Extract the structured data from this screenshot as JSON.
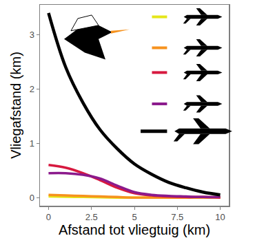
{
  "chart_data": {
    "type": "line",
    "x_label": "Afstand tot vliegtuig (km)",
    "y_label": "Vliegafstand (km)",
    "x": [
      0,
      1,
      2,
      3,
      4,
      5,
      6,
      7,
      8,
      9,
      10
    ],
    "series": [
      {
        "color": "#e5e619",
        "values": [
          0.02,
          0.015,
          0.01,
          0.005,
          0.0,
          0.0,
          0.0,
          0.0,
          0.0,
          0.0,
          0.0
        ]
      },
      {
        "color": "#f6921e",
        "values": [
          0.05,
          0.04,
          0.03,
          0.02,
          0.01,
          0.0,
          0.0,
          0.0,
          0.0,
          0.0,
          0.0
        ]
      },
      {
        "color": "#d7193f",
        "values": [
          0.6,
          0.55,
          0.45,
          0.32,
          0.18,
          0.08,
          0.04,
          0.02,
          0.01,
          0.01,
          0.0
        ]
      },
      {
        "color": "#8b1a8c",
        "values": [
          0.45,
          0.45,
          0.42,
          0.35,
          0.22,
          0.1,
          0.05,
          0.03,
          0.02,
          0.01,
          0.01
        ]
      },
      {
        "color": "#000000",
        "values": [
          3.4,
          2.4,
          1.75,
          1.25,
          0.9,
          0.62,
          0.43,
          0.28,
          0.18,
          0.1,
          0.05
        ]
      }
    ],
    "xlim": [
      -0.5,
      10.5
    ],
    "ylim": [
      -0.15,
      3.55
    ],
    "xticks": [
      0,
      2.5,
      5,
      7.5,
      10
    ],
    "yticks": [
      0,
      1,
      2,
      3
    ],
    "grid": false,
    "legend": "top right"
  }
}
